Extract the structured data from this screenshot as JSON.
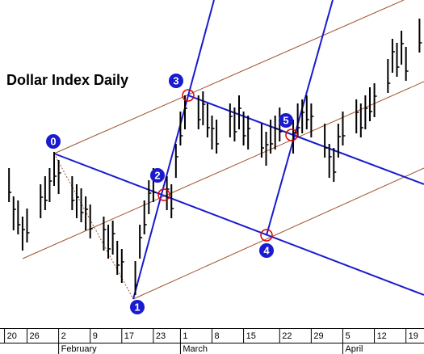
{
  "chart_data": {
    "type": "ohlc",
    "title": "Dollar Index Daily",
    "x": [
      0,
      1,
      2,
      3,
      4,
      7,
      8,
      9,
      10,
      11,
      14,
      15,
      16,
      17,
      18,
      21,
      22,
      23,
      24,
      25,
      28,
      29,
      30,
      31,
      32,
      35,
      36,
      37,
      38,
      39,
      42,
      43,
      44,
      45,
      46,
      49,
      50,
      51,
      52,
      53,
      56,
      57,
      58,
      59,
      60,
      63,
      64,
      65,
      66,
      67,
      70,
      71,
      72,
      73,
      74,
      77,
      78,
      79,
      80,
      81,
      84,
      85,
      86,
      87,
      88,
      91
    ],
    "high": [
      230,
      195,
      190,
      170,
      180,
      210,
      220,
      230,
      250,
      240,
      220,
      210,
      205,
      195,
      185,
      170,
      160,
      165,
      140,
      130,
      115,
      160,
      190,
      215,
      230,
      220,
      210,
      260,
      300,
      320,
      320,
      325,
      310,
      295,
      290,
      310,
      305,
      320,
      300,
      295,
      285,
      275,
      290,
      295,
      305,
      290,
      310,
      315,
      320,
      310,
      285,
      260,
      255,
      285,
      300,
      315,
      310,
      320,
      330,
      335,
      365,
      390,
      385,
      400,
      380,
      415
    ],
    "low": [
      188,
      153,
      148,
      128,
      138,
      168,
      178,
      188,
      208,
      198,
      178,
      168,
      163,
      153,
      143,
      128,
      118,
      123,
      98,
      88,
      73,
      118,
      148,
      173,
      188,
      178,
      168,
      218,
      258,
      278,
      278,
      283,
      268,
      253,
      248,
      268,
      263,
      278,
      258,
      253,
      243,
      233,
      248,
      253,
      263,
      248,
      268,
      273,
      278,
      268,
      243,
      218,
      213,
      243,
      258,
      273,
      268,
      278,
      288,
      293,
      323,
      348,
      343,
      358,
      338,
      373
    ],
    "close": [
      200,
      179,
      160,
      154,
      150,
      194,
      190,
      214,
      220,
      224,
      190,
      194,
      175,
      179,
      155,
      154,
      130,
      149,
      110,
      114,
      85,
      144,
      160,
      199,
      200,
      204,
      180,
      244,
      270,
      304,
      290,
      309,
      280,
      279,
      260,
      294,
      275,
      304,
      270,
      279,
      255,
      259,
      260,
      279,
      275,
      274,
      280,
      299,
      290,
      294,
      255,
      244,
      225,
      269,
      270,
      299,
      280,
      304,
      300,
      319,
      335,
      374,
      355,
      384,
      350,
      385
    ],
    "color": "#000000",
    "xlim": [
      -2,
      92
    ],
    "ylim": [
      33,
      438
    ],
    "xticks": [
      {
        "value": -1,
        "label": "20"
      },
      {
        "value": 4,
        "label": "26"
      },
      {
        "value": 11,
        "label": "2"
      },
      {
        "value": 18,
        "label": "9"
      },
      {
        "value": 25,
        "label": "17"
      },
      {
        "value": 32,
        "label": "23"
      },
      {
        "value": 38,
        "label": "1"
      },
      {
        "value": 45,
        "label": "8"
      },
      {
        "value": 52,
        "label": "15"
      },
      {
        "value": 60,
        "label": "22"
      },
      {
        "value": 67,
        "label": "29"
      },
      {
        "value": 74,
        "label": "5"
      },
      {
        "value": 81,
        "label": "12"
      },
      {
        "value": 88,
        "label": "19"
      }
    ],
    "months": [
      {
        "value": 11,
        "label": "February"
      },
      {
        "value": 38,
        "label": "March"
      },
      {
        "value": 74,
        "label": "April"
      }
    ],
    "pivots": [
      "0",
      "1",
      "2",
      "3",
      "4",
      "5"
    ]
  }
}
